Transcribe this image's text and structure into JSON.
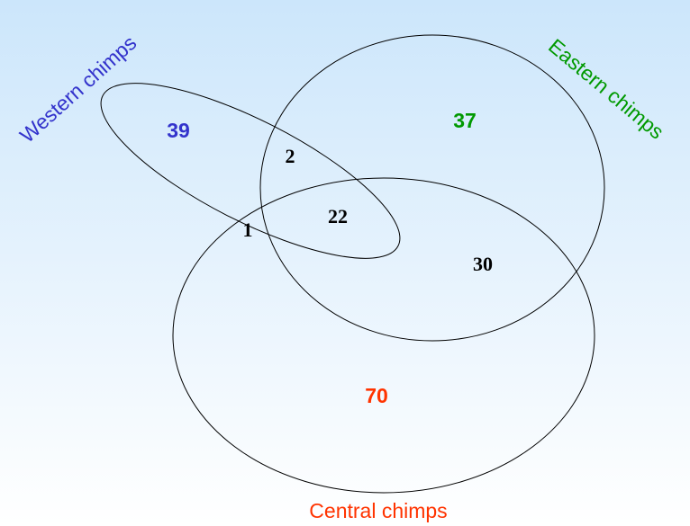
{
  "sets": [
    {
      "label": "Western chimps"
    },
    {
      "label": "Eastern chimps"
    },
    {
      "label": "Central chimps"
    }
  ],
  "regions": [
    {
      "count": 39
    },
    {
      "count": 37
    },
    {
      "count": 2
    },
    {
      "count": 22
    },
    {
      "count": 1
    },
    {
      "count": 30
    },
    {
      "count": 70
    }
  ]
}
